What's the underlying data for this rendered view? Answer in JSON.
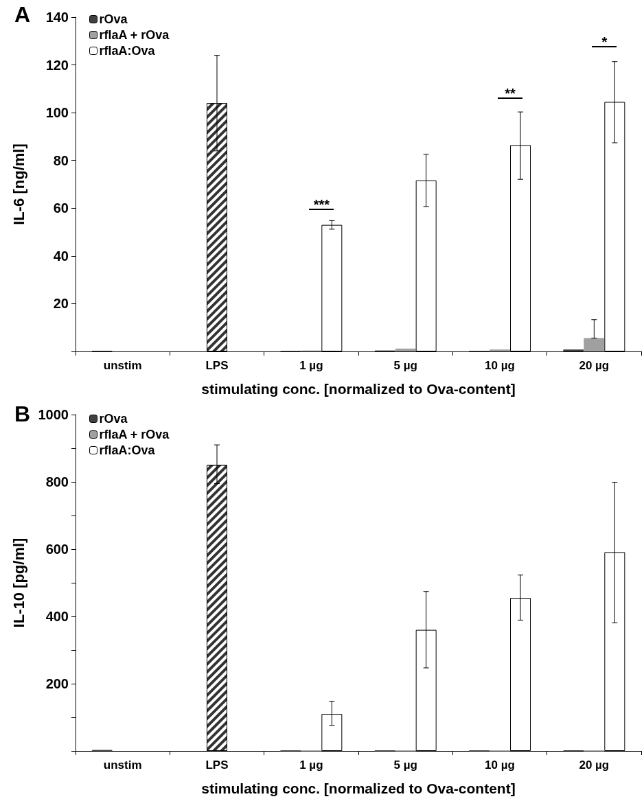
{
  "chart_data": [
    {
      "type": "bar",
      "title": "A",
      "ylabel": "IL-6 [ng/ml]",
      "xlabel": "stimulating conc. [normalized to Ova-content]",
      "categories": [
        "unstim",
        "LPS",
        "1 µg",
        "5 µg",
        "10 µg",
        "20 µg"
      ],
      "series": [
        {
          "name": "rOva",
          "color": "#404040",
          "values": [
            0.3,
            null,
            0.2,
            0.4,
            0.2,
            0.8
          ]
        },
        {
          "name": "rflaA + rOva",
          "color": "#a0a0a0",
          "values": [
            null,
            null,
            0.4,
            1.2,
            0.8,
            5.6
          ],
          "errors": [
            null,
            null,
            null,
            null,
            null,
            [
              5.6,
              13.3
            ]
          ]
        },
        {
          "name": "rflaA:Ova",
          "color": "#ffffff",
          "values": [
            null,
            null,
            53,
            71.6,
            86.4,
            104.5
          ],
          "errors": [
            null,
            null,
            1.8,
            [
              60.7,
              82.6
            ],
            [
              72.1,
              100.3
            ],
            [
              87.4,
              121.4
            ]
          ]
        },
        {
          "type": "bar",
          "color": "#333333",
          "values": [
            null,
            104,
            null,
            null,
            null,
            null
          ],
          "errors": [
            null,
            [
              84,
              124
            ],
            null,
            null,
            null,
            null
          ]
        }
      ],
      "ylim": [
        0,
        140
      ],
      "yticks": [
        {
          "value": 0,
          "label": null
        },
        20,
        40,
        60,
        80,
        100,
        120,
        140
      ],
      "legend": "top left",
      "grid": false,
      "annotations": [
        "***",
        "**",
        "*"
      ]
    },
    {
      "type": "bar",
      "title": "B",
      "ylabel": "IL-10 [pg/ml]",
      "xlabel": "stimulating conc. [normalized to Ova-content]",
      "categories": [
        "unstim",
        "LPS",
        "1 µg",
        "5 µg",
        "10 µg",
        "20 µg"
      ],
      "series": [
        {
          "name": "rOva",
          "color": "#404040",
          "values": [
            3,
            null,
            1,
            1,
            1,
            2
          ]
        },
        {
          "name": "rflaA + rOva",
          "color": "#a0a0a0",
          "values": [
            null,
            null,
            1,
            1,
            1,
            1
          ]
        },
        {
          "name": "rflaA:Ova",
          "color": "#ffffff",
          "values": [
            null,
            null,
            110,
            360,
            455,
            591
          ],
          "errors": [
            null,
            null,
            [
              76,
              148
            ],
            [
              247,
              474
            ],
            [
              389,
              523
            ],
            [
              381,
              799
            ]
          ]
        },
        {
          "type": "bar",
          "color": "#333333",
          "values": [
            null,
            850,
            null,
            null,
            null,
            null
          ],
          "errors": [
            null,
            [
              795,
              910
            ],
            null,
            null,
            null,
            null
          ]
        }
      ],
      "ylim": [
        0,
        1000
      ],
      "yticks": [
        {
          "value": 0,
          "label": null
        },
        {
          "value": 100,
          "label": null
        },
        200,
        {
          "value": 300,
          "label": null
        },
        400,
        {
          "value": 500,
          "label": null
        },
        600,
        {
          "value": 700,
          "label": null
        },
        800,
        {
          "value": 900,
          "label": null
        },
        1000
      ],
      "legend": "top left",
      "grid": false
    }
  ]
}
